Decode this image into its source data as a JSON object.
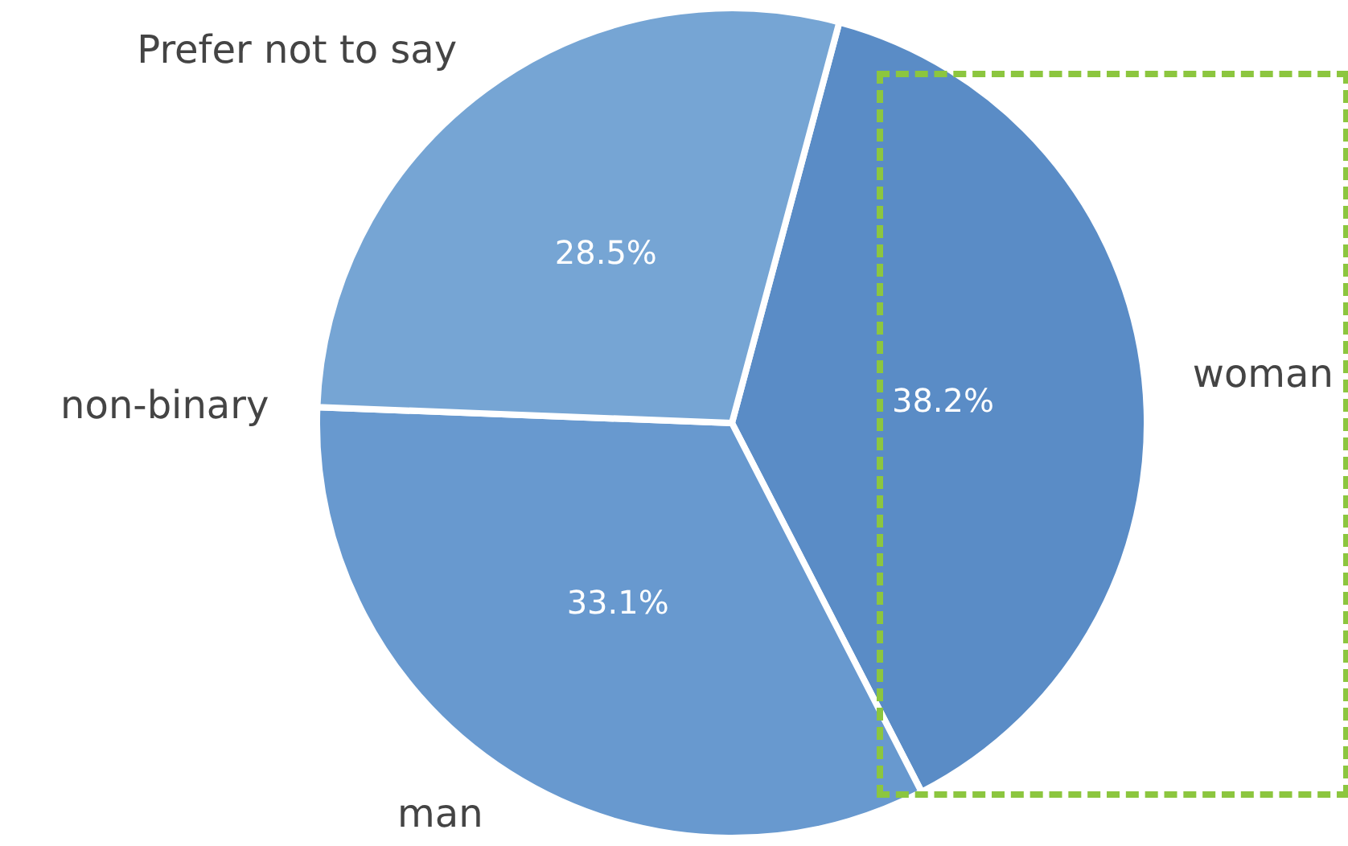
{
  "chart_data": {
    "type": "pie",
    "categories": [
      "woman",
      "man",
      "non-binary",
      "Prefer not to say"
    ],
    "values": [
      38.2,
      33.1,
      null,
      28.5
    ],
    "value_labels": [
      "38.2%",
      "33.1%",
      null,
      "28.5%"
    ],
    "colors": [
      "#5a8cc6",
      "#6899cf",
      "#6f9fd2",
      "#76a5d4"
    ],
    "legend": false
  }
}
